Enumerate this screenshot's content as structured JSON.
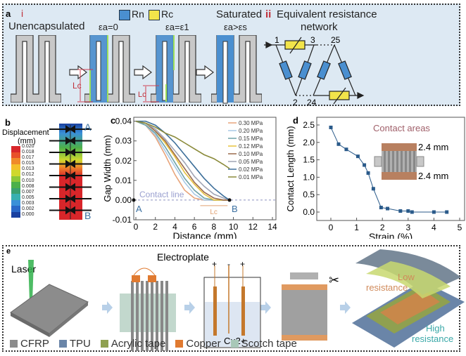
{
  "panel_a": {
    "letter": "a",
    "sub_i": "i",
    "sub_ii": "ii",
    "legend_rn": "Rn",
    "legend_rc": "Rc",
    "stage_labels": [
      "Unencapsulated",
      "εa=0",
      "εa=ε1",
      "εa>εs"
    ],
    "saturated_label": "Saturated",
    "network_title_1": "Equivalent resistance",
    "network_title_2": "network",
    "lc_label": "Lc",
    "node_labels": [
      "1",
      "3",
      "25",
      "2",
      "24"
    ],
    "colors": {
      "rn": "#4a8fd0",
      "rc": "#f2e44a",
      "substrate": "#c8c8c8",
      "background": "#dde9f3",
      "accent": "#c0303a"
    }
  },
  "panel_b": {
    "letter": "b",
    "title_1": "Displacement",
    "title_2": "(mm)",
    "colorbar_ticks": [
      "0.020",
      "0.018",
      "0.017",
      "0.015",
      "0.013",
      "0.012",
      "0.010",
      "0.008",
      "0.007",
      "0.005",
      "0.003",
      "0.002",
      "0.000"
    ],
    "colorbar_colors": [
      "#d8262a",
      "#e8502a",
      "#f08a2a",
      "#f4c02a",
      "#cfd82e",
      "#8cc83a",
      "#4cb04a",
      "#3aa070",
      "#38b0b0",
      "#3a90d8",
      "#2a68c8",
      "#1a40a0"
    ],
    "point_a": "A",
    "point_b": "B"
  },
  "chart_data": [
    {
      "type": "line",
      "panel": "c",
      "xlabel": "Distance (mm)",
      "ylabel": "Gap Width (mm)",
      "xlim": [
        0,
        14.5
      ],
      "ylim": [
        -0.01,
        0.042
      ],
      "xticks": [
        "0",
        "2",
        "4",
        "6",
        "8",
        "10",
        "12",
        "14"
      ],
      "yticks": [
        "0.04",
        "0.03",
        "0.02",
        "0.01",
        "0.00",
        "-0.01"
      ],
      "x": [
        0,
        1,
        2,
        3,
        4,
        5,
        6,
        7,
        8,
        9,
        9.6
      ],
      "series": [
        {
          "name": "0.30 MPa",
          "color": "#e8a47a",
          "values": [
            0.04,
            0.038,
            0.032,
            0.023,
            0.013,
            0.005,
            0.001,
            0,
            0,
            0,
            0
          ]
        },
        {
          "name": "0.20 MPa",
          "color": "#a9c9e6",
          "values": [
            0.04,
            0.038,
            0.033,
            0.025,
            0.017,
            0.009,
            0.003,
            0,
            0,
            0,
            0
          ]
        },
        {
          "name": "0.15 MPa",
          "color": "#6fa3a8",
          "values": [
            0.04,
            0.038,
            0.034,
            0.027,
            0.019,
            0.011,
            0.005,
            0.001,
            0,
            0,
            0
          ]
        },
        {
          "name": "0.12 MPa",
          "color": "#e8c23e",
          "values": [
            0.04,
            0.039,
            0.035,
            0.029,
            0.022,
            0.014,
            0.008,
            0.003,
            0.0,
            0,
            0
          ]
        },
        {
          "name": "0.10 MPa",
          "color": "#9b6a4c",
          "values": [
            0.04,
            0.039,
            0.035,
            0.03,
            0.023,
            0.016,
            0.009,
            0.004,
            0.001,
            0,
            0
          ]
        },
        {
          "name": "0.05 MPa",
          "color": "#a0a4b4",
          "values": [
            0.04,
            0.039,
            0.036,
            0.031,
            0.025,
            0.019,
            0.012,
            0.007,
            0.003,
            0.001,
            0
          ]
        },
        {
          "name": "0.02 MPa",
          "color": "#3d6f9a",
          "values": [
            0.04,
            0.04,
            0.038,
            0.034,
            0.029,
            0.023,
            0.017,
            0.011,
            0.006,
            0.002,
            0
          ]
        },
        {
          "name": "0.01 MPa",
          "color": "#8a8a3a",
          "values": [
            0.04,
            0.039,
            0.037,
            0.034,
            0.032,
            0.029,
            0.026,
            0.023,
            0.021,
            0.018,
            0.016
          ]
        }
      ],
      "annotations": {
        "contact_line": "Contact line",
        "point_a": "A",
        "point_b": "B",
        "lc": "Lc"
      },
      "legend_position": "top-right"
    },
    {
      "type": "line",
      "panel": "d",
      "xlabel": "Strain (%)",
      "ylabel": "Contact Length (mm)",
      "xlim": [
        -0.5,
        5
      ],
      "ylim": [
        -0.2,
        2.65
      ],
      "xticks": [
        "0",
        "1",
        "2",
        "3",
        "4",
        "5"
      ],
      "yticks": [
        "2.5",
        "2.0",
        "1.5",
        "1.0",
        "0.5",
        "0.0"
      ],
      "x": [
        0,
        0.3,
        0.6,
        1.05,
        1.3,
        1.45,
        1.65,
        1.95,
        2.2,
        2.7,
        3.0,
        3.15,
        4.0,
        4.5
      ],
      "values": [
        2.43,
        1.95,
        1.8,
        1.6,
        1.35,
        1.12,
        0.67,
        0.13,
        0.1,
        0.03,
        0.03,
        0.0,
        0.0,
        0.0
      ],
      "color": "#2a5a8a",
      "inset": {
        "title": "Contact areas",
        "dim_1": "2.4 mm",
        "dim_2": "2.4 mm"
      }
    }
  ],
  "panel_c": {
    "letter": "c"
  },
  "panel_d": {
    "letter": "d"
  },
  "panel_e": {
    "letter": "e",
    "laser_label": "Laser",
    "electroplate_label": "Electroplate",
    "electrode_signs": [
      "+",
      "-",
      "+"
    ],
    "ion_label": "Cu2+",
    "low_resistance_1": "Low",
    "low_resistance_2": "resistance",
    "high_resistance_1": "High",
    "high_resistance_2": "resistance",
    "legend": [
      {
        "label": "CFRP",
        "color": "#8c8c8c"
      },
      {
        "label": "TPU",
        "color": "#6a85a8"
      },
      {
        "label": "Acrylic tape",
        "color": "#8fa050"
      },
      {
        "label": "Copper",
        "color": "#e07a30"
      },
      {
        "label": "Scotch tape",
        "color": "#a8c8b8"
      }
    ]
  }
}
